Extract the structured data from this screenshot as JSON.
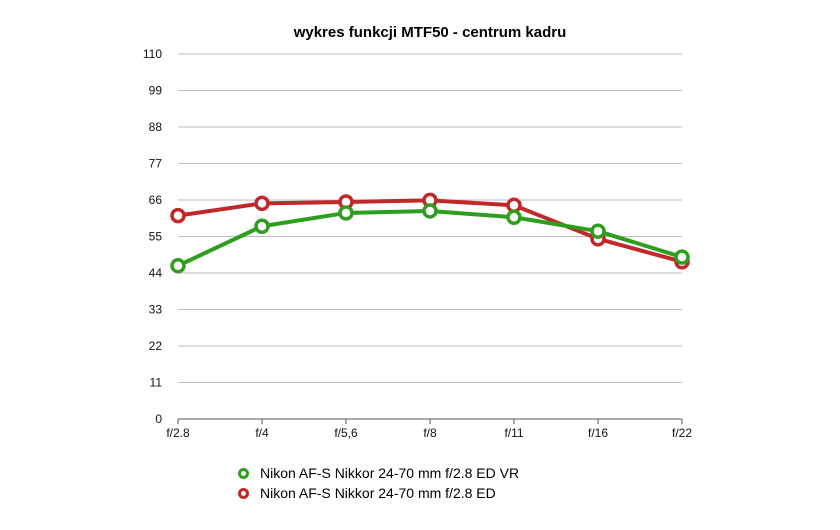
{
  "chart_data": {
    "type": "line",
    "title": "wykres funkcji MTF50 - centrum kadru",
    "categories": [
      "f/2.8",
      "f/4",
      "f/5,6",
      "f/8",
      "f/11",
      "f/16",
      "f/22"
    ],
    "ylim": [
      0,
      110
    ],
    "yticks": [
      "0",
      "11",
      "22",
      "33",
      "44",
      "55",
      "66",
      "77",
      "88",
      "99",
      "110"
    ],
    "grid": true,
    "legend_position": "bottom",
    "series": [
      {
        "name": "Nikon AF-S Nikkor 24-70 mm f/2.8 ED VR",
        "color": "#2e9e1f",
        "values": [
          46.2,
          58.1,
          62.1,
          62.7,
          60.8,
          56.6,
          48.8
        ]
      },
      {
        "name": "Nikon AF-S Nikkor 24-70 mm f/2.8 ED",
        "color": "#c0282a",
        "values": [
          61.3,
          65.0,
          65.4,
          65.9,
          64.4,
          54.3,
          47.4
        ]
      }
    ]
  }
}
